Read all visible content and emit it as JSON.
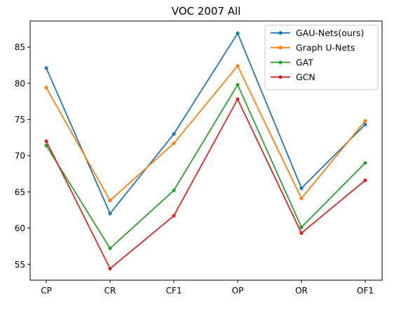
{
  "chart_data": {
    "type": "line",
    "title": "VOC 2007 All",
    "xlabel": "",
    "ylabel": "",
    "categories": [
      "CP",
      "CR",
      "CF1",
      "OP",
      "OR",
      "OF1"
    ],
    "ylim": [
      52.8,
      88.6
    ],
    "yticks": [
      55,
      60,
      65,
      70,
      75,
      80,
      85
    ],
    "grid": false,
    "legend_position": "top-right",
    "series": [
      {
        "name": "GAU-Nets(ours)",
        "color": "#1f77b4",
        "values": [
          82.1,
          62.0,
          73.0,
          86.9,
          65.5,
          74.3
        ]
      },
      {
        "name": "Graph U-Nets",
        "color": "#ff7f0e",
        "values": [
          79.4,
          63.8,
          71.7,
          82.4,
          64.1,
          74.8
        ]
      },
      {
        "name": "GAT",
        "color": "#2ca02c",
        "values": [
          71.4,
          57.2,
          65.2,
          79.8,
          60.1,
          69.0
        ]
      },
      {
        "name": "GCN",
        "color": "#d62728",
        "values": [
          72.0,
          54.4,
          61.7,
          77.8,
          59.3,
          66.6
        ]
      }
    ]
  }
}
